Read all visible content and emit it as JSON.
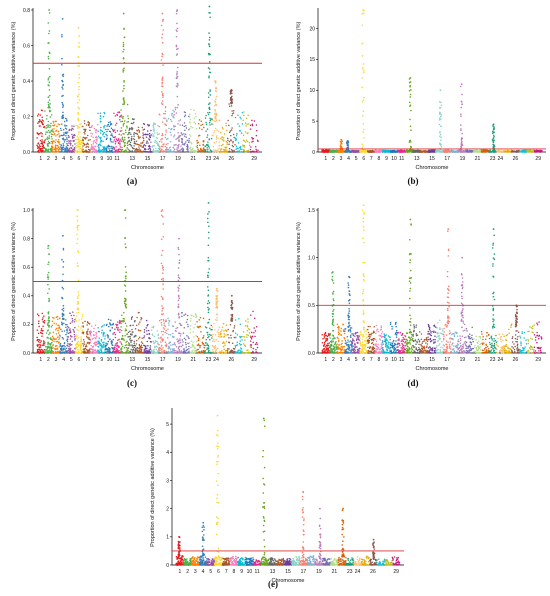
{
  "colors": {
    "threshold_line": "#d93030",
    "chromosome_palette": [
      "#e41a1c",
      "#4daf4a",
      "#ff7f00",
      "#377eb8",
      "#984ea3",
      "#ffd92f",
      "#a65628",
      "#f781bf",
      "#00bcd4",
      "#1f78b4",
      "#e7298a",
      "#66a61e",
      "#666666",
      "#b15928",
      "#6a3d9a",
      "#8dd3c7",
      "#fb8072",
      "#80b1d3",
      "#bc80bd",
      "#7570b3",
      "#b2df8a",
      "#d95f02",
      "#1b9e77",
      "#fdbf6f",
      "#e6ab02",
      "#8c564b",
      "#17becf",
      "#bcbd22",
      "#c51b7d"
    ]
  },
  "chart_data": [
    {
      "panel": "(a)",
      "type": "scatter",
      "subtype": "manhattan",
      "xlabel": "Chromosome",
      "ylabel": "Proportion of direct genetic additive variance (%)",
      "ylim": [
        0,
        0.8
      ],
      "yticks": [
        "0.0",
        "0.2",
        "0.4",
        "0.6",
        "0.8"
      ],
      "xtick_labels": [
        "1",
        "2",
        "3",
        "4",
        "5",
        "6",
        "7",
        "8",
        "9",
        "10",
        "11",
        "13",
        "15",
        "17",
        "19",
        "21",
        "23",
        "24",
        "26",
        "29"
      ],
      "threshold": 0.5,
      "baseline_max": 0.28,
      "peaks": [
        {
          "chromosome": 2,
          "max": 0.8
        },
        {
          "chromosome": 4,
          "max": 0.75
        },
        {
          "chromosome": 6,
          "max": 0.7
        },
        {
          "chromosome": 12,
          "max": 0.78
        },
        {
          "chromosome": 17,
          "max": 0.78
        },
        {
          "chromosome": 19,
          "max": 0.8
        },
        {
          "chromosome": 23,
          "max": 0.82
        },
        {
          "chromosome": 24,
          "max": 0.4
        },
        {
          "chromosome": 26,
          "max": 0.35
        }
      ]
    },
    {
      "panel": "(b)",
      "type": "scatter",
      "subtype": "manhattan",
      "xlabel": "Chromosome",
      "ylabel": "Proportion of direct genetic additive variance (%)",
      "ylim": [
        0,
        23
      ],
      "yticks": [
        "0",
        "5",
        "10",
        "15",
        "20"
      ],
      "xtick_labels": [
        "1",
        "2",
        "3",
        "4",
        "5",
        "6",
        "7",
        "8",
        "9",
        "10",
        "11",
        "13",
        "15",
        "17",
        "19",
        "21",
        "23",
        "24",
        "26",
        "29"
      ],
      "threshold": 0.5,
      "baseline_max": 0.4,
      "peaks": [
        {
          "chromosome": 3,
          "max": 2.0
        },
        {
          "chromosome": 4,
          "max": 1.8
        },
        {
          "chromosome": 6,
          "max": 23.0
        },
        {
          "chromosome": 12,
          "max": 12.0
        },
        {
          "chromosome": 16,
          "max": 10.0
        },
        {
          "chromosome": 19,
          "max": 11.0
        },
        {
          "chromosome": 23,
          "max": 4.5
        }
      ]
    },
    {
      "panel": "(c)",
      "type": "scatter",
      "subtype": "manhattan",
      "xlabel": "Chromosome",
      "ylabel": "Proportion of direct genetic additive variance (%)",
      "ylim": [
        0,
        1.0
      ],
      "yticks": [
        "0.0",
        "0.2",
        "0.4",
        "0.6",
        "0.8",
        "1.0"
      ],
      "xtick_labels": [
        "1",
        "2",
        "3",
        "4",
        "5",
        "6",
        "7",
        "8",
        "9",
        "10",
        "11",
        "13",
        "15",
        "17",
        "19",
        "21",
        "23",
        "24",
        "26",
        "29"
      ],
      "threshold": 0.5,
      "baseline_max": 0.32,
      "peaks": [
        {
          "chromosome": 2,
          "max": 0.75
        },
        {
          "chromosome": 4,
          "max": 0.82
        },
        {
          "chromosome": 6,
          "max": 1.0
        },
        {
          "chromosome": 12,
          "max": 1.0
        },
        {
          "chromosome": 17,
          "max": 1.0
        },
        {
          "chromosome": 19,
          "max": 0.8
        },
        {
          "chromosome": 23,
          "max": 1.05
        },
        {
          "chromosome": 24,
          "max": 0.45
        },
        {
          "chromosome": 26,
          "max": 0.4
        }
      ]
    },
    {
      "panel": "(d)",
      "type": "scatter",
      "subtype": "manhattan",
      "xlabel": "Chromosome",
      "ylabel": "Proportion of direct genetic additive variance (%)",
      "ylim": [
        0,
        1.5
      ],
      "yticks": [
        "0.0",
        "0.5",
        "1.0",
        "1.5"
      ],
      "xtick_labels": [
        "1",
        "2",
        "3",
        "4",
        "5",
        "6",
        "7",
        "8",
        "9",
        "10",
        "11",
        "13",
        "15",
        "17",
        "19",
        "21",
        "23",
        "24",
        "26",
        "29"
      ],
      "threshold": 0.5,
      "baseline_max": 0.35,
      "peaks": [
        {
          "chromosome": 2,
          "max": 0.85
        },
        {
          "chromosome": 4,
          "max": 0.8
        },
        {
          "chromosome": 6,
          "max": 1.55
        },
        {
          "chromosome": 12,
          "max": 1.4
        },
        {
          "chromosome": 17,
          "max": 1.3
        },
        {
          "chromosome": 19,
          "max": 1.0
        },
        {
          "chromosome": 23,
          "max": 1.3
        },
        {
          "chromosome": 26,
          "max": 0.5
        }
      ]
    },
    {
      "panel": "(e)",
      "type": "scatter",
      "subtype": "manhattan",
      "xlabel": "Chromosome",
      "ylabel": "Proportion of direct genetic additive variance (%)",
      "ylim": [
        0,
        5.5
      ],
      "yticks": [
        "0",
        "1",
        "2",
        "3",
        "4",
        "5"
      ],
      "xtick_labels": [
        "1",
        "2",
        "3",
        "4",
        "5",
        "6",
        "7",
        "8",
        "9",
        "10",
        "11",
        "13",
        "15",
        "17",
        "19",
        "21",
        "23",
        "24",
        "26",
        "29"
      ],
      "threshold": 0.5,
      "baseline_max": 0.35,
      "peaks": [
        {
          "chromosome": 1,
          "max": 1.0
        },
        {
          "chromosome": 4,
          "max": 1.5
        },
        {
          "chromosome": 6,
          "max": 5.3
        },
        {
          "chromosome": 12,
          "max": 5.2
        },
        {
          "chromosome": 17,
          "max": 2.6
        },
        {
          "chromosome": 19,
          "max": 2.0
        },
        {
          "chromosome": 22,
          "max": 2.0
        },
        {
          "chromosome": 26,
          "max": 0.9
        }
      ]
    }
  ]
}
